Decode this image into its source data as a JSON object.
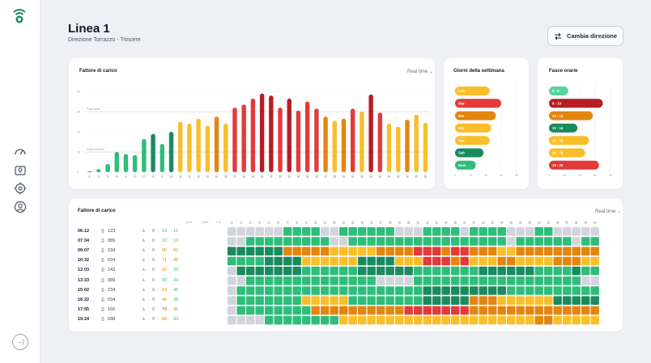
{
  "header": {
    "title": "Linea 1",
    "subtitle": "Direzione Torrazzo - Trincere",
    "button_label": "Cambia direzione"
  },
  "colors": {
    "dark_green": "#1a8a5f",
    "green": "#2ebd7a",
    "light_green": "#56d49a",
    "yellow": "#f9be2a",
    "orange": "#e4850f",
    "red": "#e23b3b",
    "dark_red": "#b61d25",
    "gray": "#d1d5db"
  },
  "load_chart": {
    "title": "Fattore di carico",
    "realtime_label": "Real time",
    "y_ticks": [
      "80",
      "60",
      "40",
      "20",
      "0"
    ],
    "threshold_labels": [
      "Posti totali",
      "Posti a sedere"
    ],
    "chart_data": {
      "type": "bar",
      "categories": [
        "1",
        "2",
        "3",
        "4",
        "5",
        "6",
        "7",
        "8",
        "9",
        "10",
        "11",
        "12",
        "13",
        "14",
        "15",
        "16",
        "17",
        "18",
        "19",
        "20",
        "21",
        "22",
        "23",
        "24",
        "25",
        "26",
        "27",
        "28",
        "29",
        "30",
        "31",
        "32",
        "33",
        "34",
        "35",
        "36",
        "37",
        "38"
      ],
      "values": [
        1,
        3,
        8,
        20,
        18,
        17,
        33,
        38,
        28,
        40,
        50,
        48,
        53,
        46,
        55,
        48,
        64,
        67,
        73,
        78,
        76,
        64,
        73,
        61,
        70,
        63,
        55,
        51,
        53,
        63,
        60,
        77,
        59,
        48,
        45,
        52,
        57,
        49
      ],
      "colors": [
        "green",
        "green",
        "green",
        "green",
        "green",
        "green",
        "green",
        "dark_green",
        "green",
        "dark_green",
        "yellow",
        "yellow",
        "yellow",
        "yellow",
        "orange",
        "yellow",
        "red",
        "red",
        "red",
        "dark_red",
        "dark_red",
        "red",
        "dark_red",
        "red",
        "red",
        "red",
        "orange",
        "yellow",
        "orange",
        "red",
        "yellow",
        "dark_red",
        "red",
        "yellow",
        "yellow",
        "orange",
        "yellow",
        "yellow"
      ],
      "ylim": [
        0,
        85
      ],
      "thresholds": [
        60,
        20
      ]
    }
  },
  "days_chart": {
    "title": "Giorni della settimana",
    "x_ticks": [
      "0",
      "20",
      "40",
      "60",
      "80"
    ],
    "chart_data": {
      "type": "bar",
      "orientation": "horizontal",
      "categories": [
        "Lun",
        "Mar",
        "Mer",
        "Gio",
        "Ven",
        "Sab",
        "Dom"
      ],
      "values": [
        45,
        60,
        53,
        47,
        45,
        37,
        27
      ],
      "colors": [
        "yellow",
        "red",
        "orange",
        "yellow",
        "yellow",
        "dark_green",
        "green"
      ],
      "xlim": [
        0,
        80
      ]
    }
  },
  "hours_chart": {
    "title": "Fasce orarie",
    "x_ticks": [
      "0",
      "20",
      "40",
      "60",
      "80"
    ],
    "chart_data": {
      "type": "bar",
      "orientation": "horizontal",
      "categories": [
        "6 - 8",
        "8 - 10",
        "10 - 12",
        "12 - 14",
        "14 - 16",
        "16 - 18",
        "18 - 20"
      ],
      "values": [
        25,
        70,
        57,
        37,
        52,
        47,
        65
      ],
      "colors": [
        "light_green",
        "dark_red",
        "orange",
        "dark_green",
        "yellow",
        "yellow",
        "red"
      ],
      "xlim": [
        0,
        80
      ]
    }
  },
  "trips_table": {
    "title": "Fattore di carico",
    "realtime_label": "Real time",
    "column_headers": [
      "pers.",
      "f.max",
      "f. m."
    ],
    "stops_count": 38,
    "rows": [
      {
        "time": "06:12",
        "bus": "123",
        "p1": "0",
        "p2": "19",
        "p3": "12",
        "p2_color": "green",
        "p3_color": "green",
        "cells": "GGGGGGLLLLGGLLLLLLGGGLLLLGLLLLGGGLLGGGGG"
      },
      {
        "time": "07:34",
        "bus": "089",
        "p1": "0",
        "p2": "22",
        "p3": "13",
        "p2_color": "green",
        "p3_color": "green",
        "cells": "GGLLLLLLLLLGGLLLLLLLLLLLLLLLLLGLLLLLLGLL"
      },
      {
        "time": "09:07",
        "bus": "234",
        "p1": "0",
        "p2": "80",
        "p3": "50",
        "p2_color": "orange",
        "p3_color": "orange",
        "cells": "DDDDDDOOOOOYYYYYOOOORRRORROOOYYOOOOOOOOO"
      },
      {
        "time": "10:32",
        "bus": "034",
        "p1": "0",
        "p2": "71",
        "p3": "46",
        "p2_color": "orange",
        "p3_color": "orange",
        "cells": "LLLLDDDDYYYYYYDDDDYYYRRRORYYYOOYYYYOOOYY"
      },
      {
        "time": "12:03",
        "bus": "143",
        "p1": "0",
        "p2": "50",
        "p3": "33",
        "p2_color": "orange",
        "p3_color": "green",
        "cells": "GDDDDDDDLLLLLLDDDDDDLLLLLLLDDDDDDLLLLDLL"
      },
      {
        "time": "13:33",
        "bus": "089",
        "p1": "0",
        "p2": "39",
        "p3": "20",
        "p2_color": "green",
        "p3_color": "green",
        "cells": "GGLLLLLLLLLLLLLLGGGGLLLLLLLLLLLLLLLLLLGG"
      },
      {
        "time": "15:02",
        "bus": "234",
        "p1": "0",
        "p2": "53",
        "p3": "40",
        "p2_color": "orange",
        "p3_color": "green",
        "cells": "GLLLLLLLLLLLLLLLLLLLLDDDDDDDDDLLLLLLLLLL"
      },
      {
        "time": "16:22",
        "bus": "034",
        "p1": "0",
        "p2": "46",
        "p3": "38",
        "p2_color": "orange",
        "p3_color": "green",
        "cells": "GLLLLLLLYYYYYLLLLLLLLDDDDDOOOYYYYYYDDDDD"
      },
      {
        "time": "17:55",
        "bus": "165",
        "p1": "0",
        "p2": "79",
        "p3": "35",
        "p2_color": "red",
        "p3_color": "orange",
        "cells": "GLLLLLLLLOOOOOOOOOORRRRRRROOOOOOOOOOOOOO"
      },
      {
        "time": "19:24",
        "bus": "098",
        "p1": "0",
        "p2": "58",
        "p3": "43",
        "p2_color": "orange",
        "p3_color": "green",
        "cells": "GGGGLLLLLLLLYYYYYYYYYYYYYYYYYYYYYOOYYYYY"
      }
    ]
  }
}
